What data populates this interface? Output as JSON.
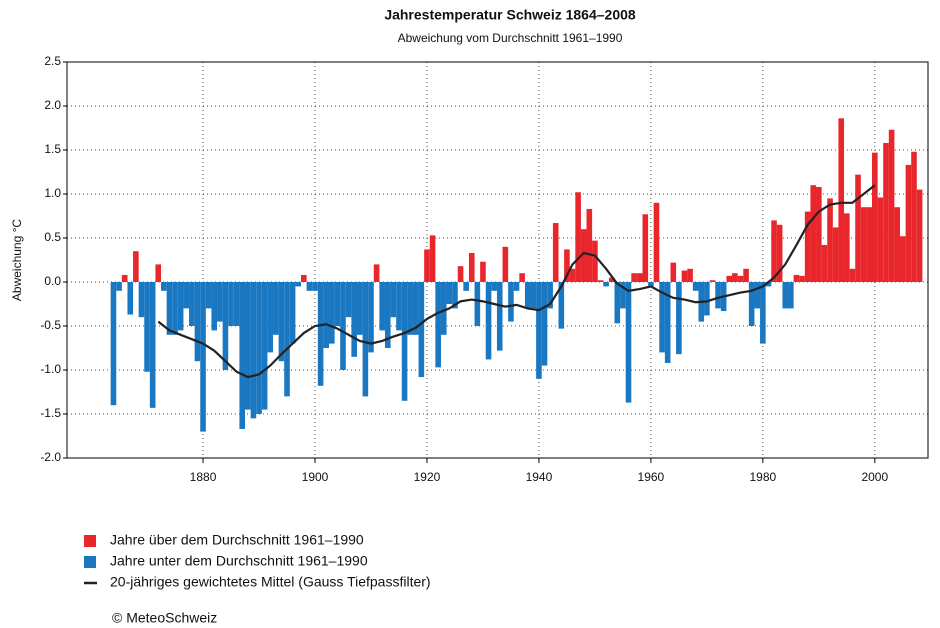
{
  "chart_data": {
    "type": "bar",
    "title": "Jahrestemperatur Schweiz 1864–2008",
    "subtitle": "Abweichung vom Durchschnitt 1961–1990",
    "y_label": "Abweichung °C",
    "credit": "© MeteoSchweiz",
    "xlim": [
      1855.7,
      2009.5
    ],
    "ylim": [
      -2.0,
      2.5
    ],
    "xticks": [
      1880,
      1900,
      1920,
      1940,
      1960,
      1980,
      2000
    ],
    "yticks": [
      {
        "value": -2.0,
        "label": "-2.0"
      },
      {
        "value": -1.5,
        "label": "-1.5"
      },
      {
        "value": -1.0,
        "label": "-1.0"
      },
      {
        "value": -0.5,
        "label": "-0.5"
      },
      {
        "value": 0.0,
        "label": "0.0"
      },
      {
        "value": 0.5,
        "label": "0.5"
      },
      {
        "value": 1.0,
        "label": "1.0"
      },
      {
        "value": 1.5,
        "label": "1.5"
      },
      {
        "value": 2.0,
        "label": "2.0"
      },
      {
        "value": 2.5,
        "label": "2.5"
      }
    ],
    "grid": true,
    "x": [
      1864,
      1865,
      1866,
      1867,
      1868,
      1869,
      1870,
      1871,
      1872,
      1873,
      1874,
      1875,
      1876,
      1877,
      1878,
      1879,
      1880,
      1881,
      1882,
      1883,
      1884,
      1885,
      1886,
      1887,
      1888,
      1889,
      1890,
      1891,
      1892,
      1893,
      1894,
      1895,
      1896,
      1897,
      1898,
      1899,
      1900,
      1901,
      1902,
      1903,
      1904,
      1905,
      1906,
      1907,
      1908,
      1909,
      1910,
      1911,
      1912,
      1913,
      1914,
      1915,
      1916,
      1917,
      1918,
      1919,
      1920,
      1921,
      1922,
      1923,
      1924,
      1925,
      1926,
      1927,
      1928,
      1929,
      1930,
      1931,
      1932,
      1933,
      1934,
      1935,
      1936,
      1937,
      1938,
      1939,
      1940,
      1941,
      1942,
      1943,
      1944,
      1945,
      1946,
      1947,
      1948,
      1949,
      1950,
      1951,
      1952,
      1953,
      1954,
      1955,
      1956,
      1957,
      1958,
      1959,
      1960,
      1961,
      1962,
      1963,
      1964,
      1965,
      1966,
      1967,
      1968,
      1969,
      1970,
      1971,
      1972,
      1973,
      1974,
      1975,
      1976,
      1977,
      1978,
      1979,
      1980,
      1981,
      1982,
      1983,
      1984,
      1985,
      1986,
      1987,
      1988,
      1989,
      1990,
      1991,
      1992,
      1993,
      1994,
      1995,
      1996,
      1997,
      1998,
      1999,
      2000,
      2001,
      2002,
      2003,
      2004,
      2005,
      2006,
      2007,
      2008
    ],
    "series": [
      {
        "name": "Jahre über dem Durchschnitt 1961–1990",
        "color": "#e8262b",
        "values": [
          null,
          null,
          0.08,
          null,
          0.35,
          null,
          null,
          null,
          0.2,
          null,
          null,
          null,
          null,
          null,
          null,
          null,
          null,
          null,
          null,
          null,
          null,
          null,
          null,
          null,
          null,
          null,
          null,
          null,
          null,
          null,
          null,
          null,
          null,
          null,
          0.08,
          null,
          null,
          null,
          null,
          null,
          null,
          null,
          null,
          null,
          null,
          null,
          null,
          0.2,
          null,
          null,
          null,
          null,
          null,
          null,
          null,
          null,
          0.37,
          0.53,
          null,
          null,
          null,
          null,
          0.18,
          null,
          0.33,
          null,
          0.23,
          null,
          null,
          null,
          0.4,
          null,
          null,
          0.1,
          null,
          null,
          null,
          null,
          null,
          0.67,
          null,
          0.37,
          0.15,
          1.02,
          0.6,
          0.83,
          0.47,
          0.02,
          null,
          0.05,
          null,
          null,
          null,
          0.1,
          0.1,
          0.77,
          null,
          0.9,
          null,
          null,
          0.22,
          null,
          0.13,
          0.15,
          null,
          null,
          null,
          0.02,
          null,
          null,
          0.07,
          0.1,
          0.07,
          0.15,
          null,
          null,
          null,
          null,
          0.7,
          0.65,
          null,
          null,
          0.08,
          0.07,
          0.8,
          1.1,
          1.08,
          0.42,
          0.95,
          0.62,
          1.86,
          0.78,
          0.15,
          1.22,
          0.85,
          0.85,
          1.47,
          0.96,
          1.58,
          1.73,
          0.85,
          0.52,
          1.33,
          1.48,
          1.05
        ]
      },
      {
        "name": "Jahre unter dem Durchschnitt 1961–1990",
        "color": "#1a78c2",
        "values": [
          -1.4,
          -0.1,
          null,
          -0.37,
          null,
          -0.4,
          -1.02,
          -1.43,
          null,
          -0.1,
          -0.6,
          -0.6,
          -0.55,
          -0.3,
          -0.5,
          -0.9,
          -1.7,
          -0.3,
          -0.55,
          -0.45,
          -1.0,
          -0.5,
          -0.5,
          -1.67,
          -1.45,
          -1.55,
          -1.5,
          -1.45,
          -0.8,
          -0.6,
          -0.9,
          -1.3,
          -0.7,
          -0.05,
          null,
          -0.1,
          -0.1,
          -1.18,
          -0.75,
          -0.7,
          -0.5,
          -1.0,
          -0.4,
          -0.85,
          -0.6,
          -1.3,
          -0.8,
          null,
          -0.55,
          -0.75,
          -0.4,
          -0.55,
          -1.35,
          -0.6,
          -0.6,
          -1.08,
          null,
          null,
          -0.97,
          -0.6,
          -0.25,
          -0.3,
          null,
          -0.1,
          null,
          -0.5,
          null,
          -0.88,
          -0.1,
          -0.78,
          null,
          -0.45,
          -0.1,
          null,
          -0.3,
          -0.3,
          -1.1,
          -0.95,
          -0.3,
          null,
          -0.53,
          null,
          null,
          null,
          null,
          null,
          null,
          null,
          -0.05,
          null,
          -0.47,
          -0.3,
          -1.37,
          null,
          null,
          null,
          -0.05,
          null,
          -0.8,
          -0.92,
          null,
          -0.82,
          null,
          null,
          -0.1,
          -0.45,
          -0.38,
          null,
          -0.3,
          -0.33,
          null,
          null,
          null,
          null,
          -0.5,
          -0.3,
          -0.7,
          -0.05,
          null,
          null,
          -0.3,
          -0.3,
          null,
          null,
          null,
          null,
          null,
          null,
          null,
          null,
          null,
          null,
          null,
          null,
          null,
          null,
          null,
          null,
          null,
          null,
          null,
          null,
          null,
          null,
          null
        ]
      },
      {
        "name": "20-jähriges gewichtetes Mittel (Gauss Tiefpassfilter)",
        "color": "#222222",
        "type": "line",
        "x": [
          1872,
          1874,
          1876,
          1878,
          1880,
          1882,
          1884,
          1886,
          1888,
          1890,
          1892,
          1894,
          1896,
          1898,
          1900,
          1902,
          1904,
          1906,
          1908,
          1910,
          1912,
          1914,
          1916,
          1918,
          1920,
          1922,
          1924,
          1926,
          1928,
          1930,
          1932,
          1934,
          1936,
          1938,
          1940,
          1942,
          1944,
          1946,
          1948,
          1950,
          1952,
          1954,
          1956,
          1958,
          1960,
          1962,
          1964,
          1966,
          1968,
          1970,
          1972,
          1974,
          1976,
          1978,
          1980,
          1982,
          1984,
          1986,
          1988,
          1990,
          1992,
          1994,
          1996,
          1998,
          2000
        ],
        "values": [
          -0.45,
          -0.55,
          -0.6,
          -0.65,
          -0.7,
          -0.78,
          -0.9,
          -1.02,
          -1.08,
          -1.05,
          -0.95,
          -0.82,
          -0.7,
          -0.58,
          -0.5,
          -0.48,
          -0.53,
          -0.6,
          -0.67,
          -0.7,
          -0.67,
          -0.62,
          -0.58,
          -0.52,
          -0.42,
          -0.35,
          -0.3,
          -0.22,
          -0.2,
          -0.22,
          -0.25,
          -0.28,
          -0.26,
          -0.3,
          -0.32,
          -0.25,
          -0.05,
          0.2,
          0.33,
          0.3,
          0.15,
          -0.02,
          -0.1,
          -0.08,
          -0.05,
          -0.12,
          -0.18,
          -0.2,
          -0.23,
          -0.22,
          -0.18,
          -0.15,
          -0.12,
          -0.1,
          -0.05,
          0.05,
          0.2,
          0.42,
          0.65,
          0.8,
          0.88,
          0.9,
          0.9,
          1.0,
          1.1
        ]
      }
    ]
  }
}
